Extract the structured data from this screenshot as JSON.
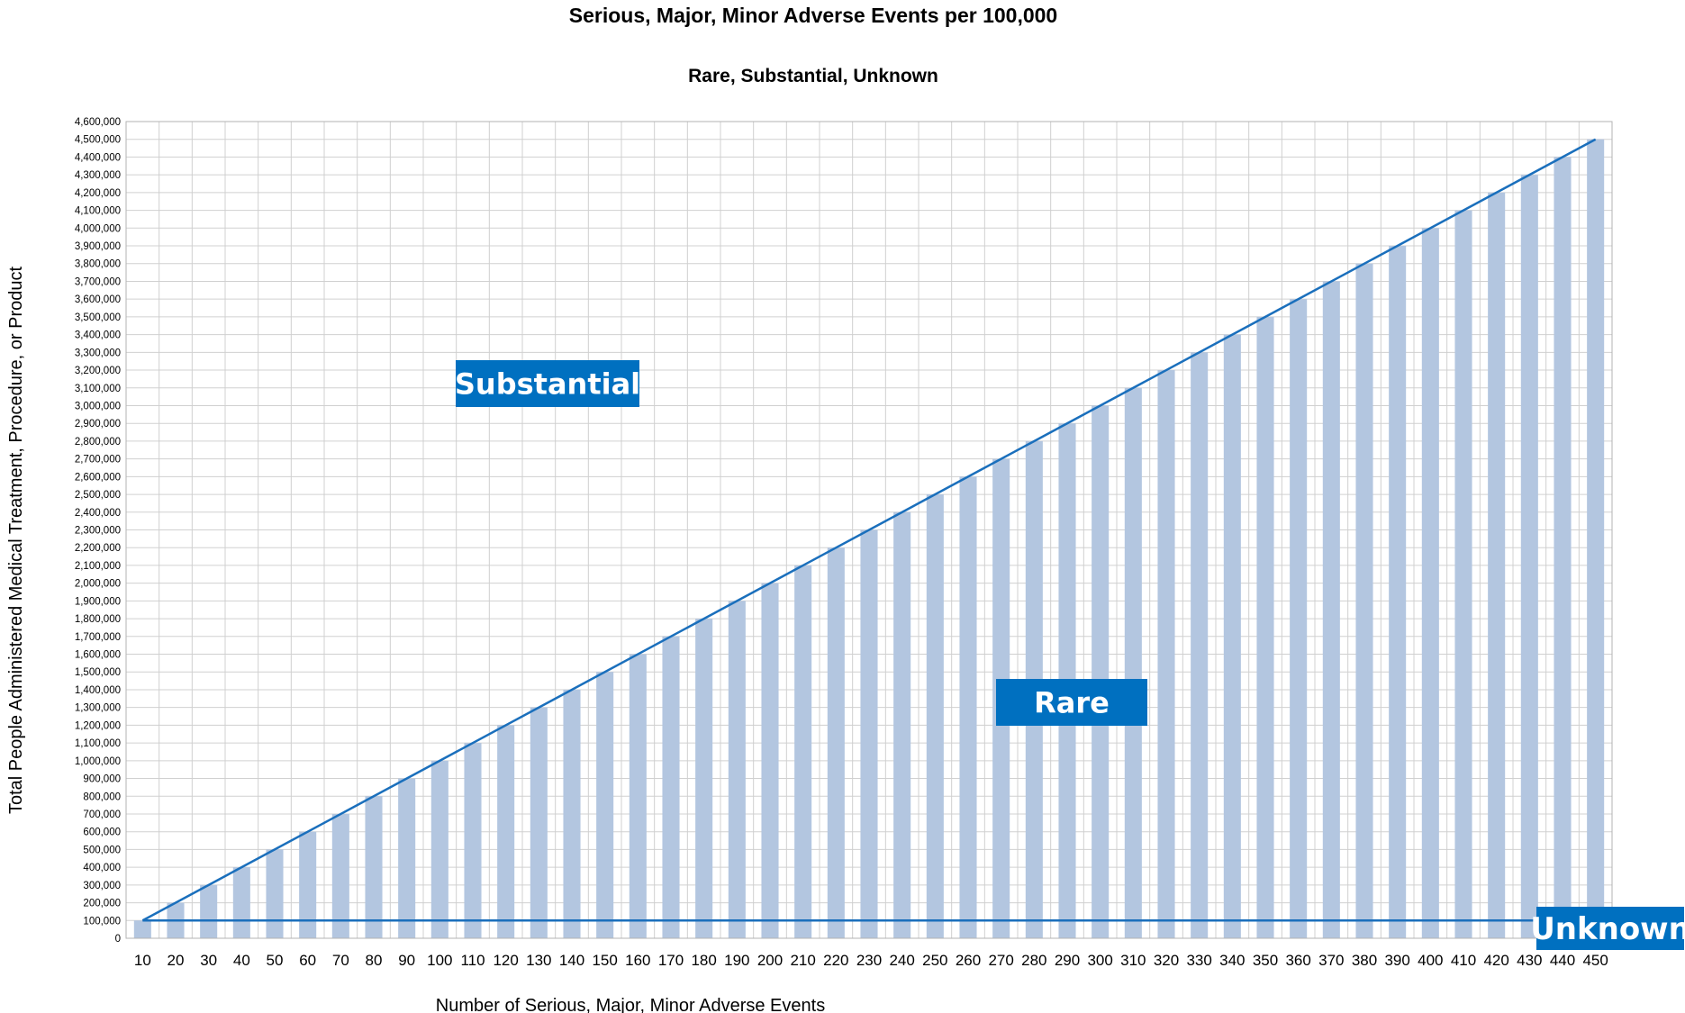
{
  "chart_data": {
    "type": "bar",
    "title": "Serious, Major, Minor Adverse Events per 100,000",
    "subtitle": "Rare, Substantial, Unknown",
    "xlabel": "Number of Serious, Major, Minor Adverse Events",
    "ylabel": "Total People Administered Medical Treatment, Procedure, or Product",
    "ylim": [
      0,
      4600000
    ],
    "ytick_step": 100000,
    "grid": true,
    "categories": [
      "10",
      "20",
      "30",
      "40",
      "50",
      "60",
      "70",
      "80",
      "90",
      "100",
      "110",
      "120",
      "130",
      "140",
      "150",
      "160",
      "170",
      "180",
      "190",
      "200",
      "210",
      "220",
      "230",
      "240",
      "250",
      "260",
      "270",
      "280",
      "290",
      "300",
      "310",
      "320",
      "330",
      "340",
      "350",
      "360",
      "370",
      "380",
      "390",
      "400",
      "410",
      "420",
      "430",
      "440",
      "450"
    ],
    "values": [
      100000,
      200000,
      300000,
      400000,
      500000,
      600000,
      700000,
      800000,
      900000,
      1000000,
      1100000,
      1200000,
      1300000,
      1400000,
      1500000,
      1600000,
      1700000,
      1800000,
      1900000,
      2000000,
      2100000,
      2200000,
      2300000,
      2400000,
      2500000,
      2600000,
      2700000,
      2800000,
      2900000,
      3000000,
      3100000,
      3200000,
      3300000,
      3400000,
      3500000,
      3600000,
      3700000,
      3800000,
      3900000,
      4000000,
      4100000,
      4200000,
      4300000,
      4400000,
      4500000
    ],
    "bar_color": "#b3c6e0",
    "lines": [
      {
        "from": [
          "10",
          100000
        ],
        "to": [
          "450",
          4500000
        ],
        "color": "#1a6fbc"
      },
      {
        "from": [
          "10",
          100000
        ],
        "to": [
          "450",
          100000
        ],
        "color": "#1a6fbc"
      }
    ],
    "annotations": [
      {
        "text": "Substantial",
        "color": "#0070c0"
      },
      {
        "text": "Rare",
        "color": "#0070c0"
      },
      {
        "text": "Unknown",
        "color": "#0070c0"
      }
    ]
  }
}
